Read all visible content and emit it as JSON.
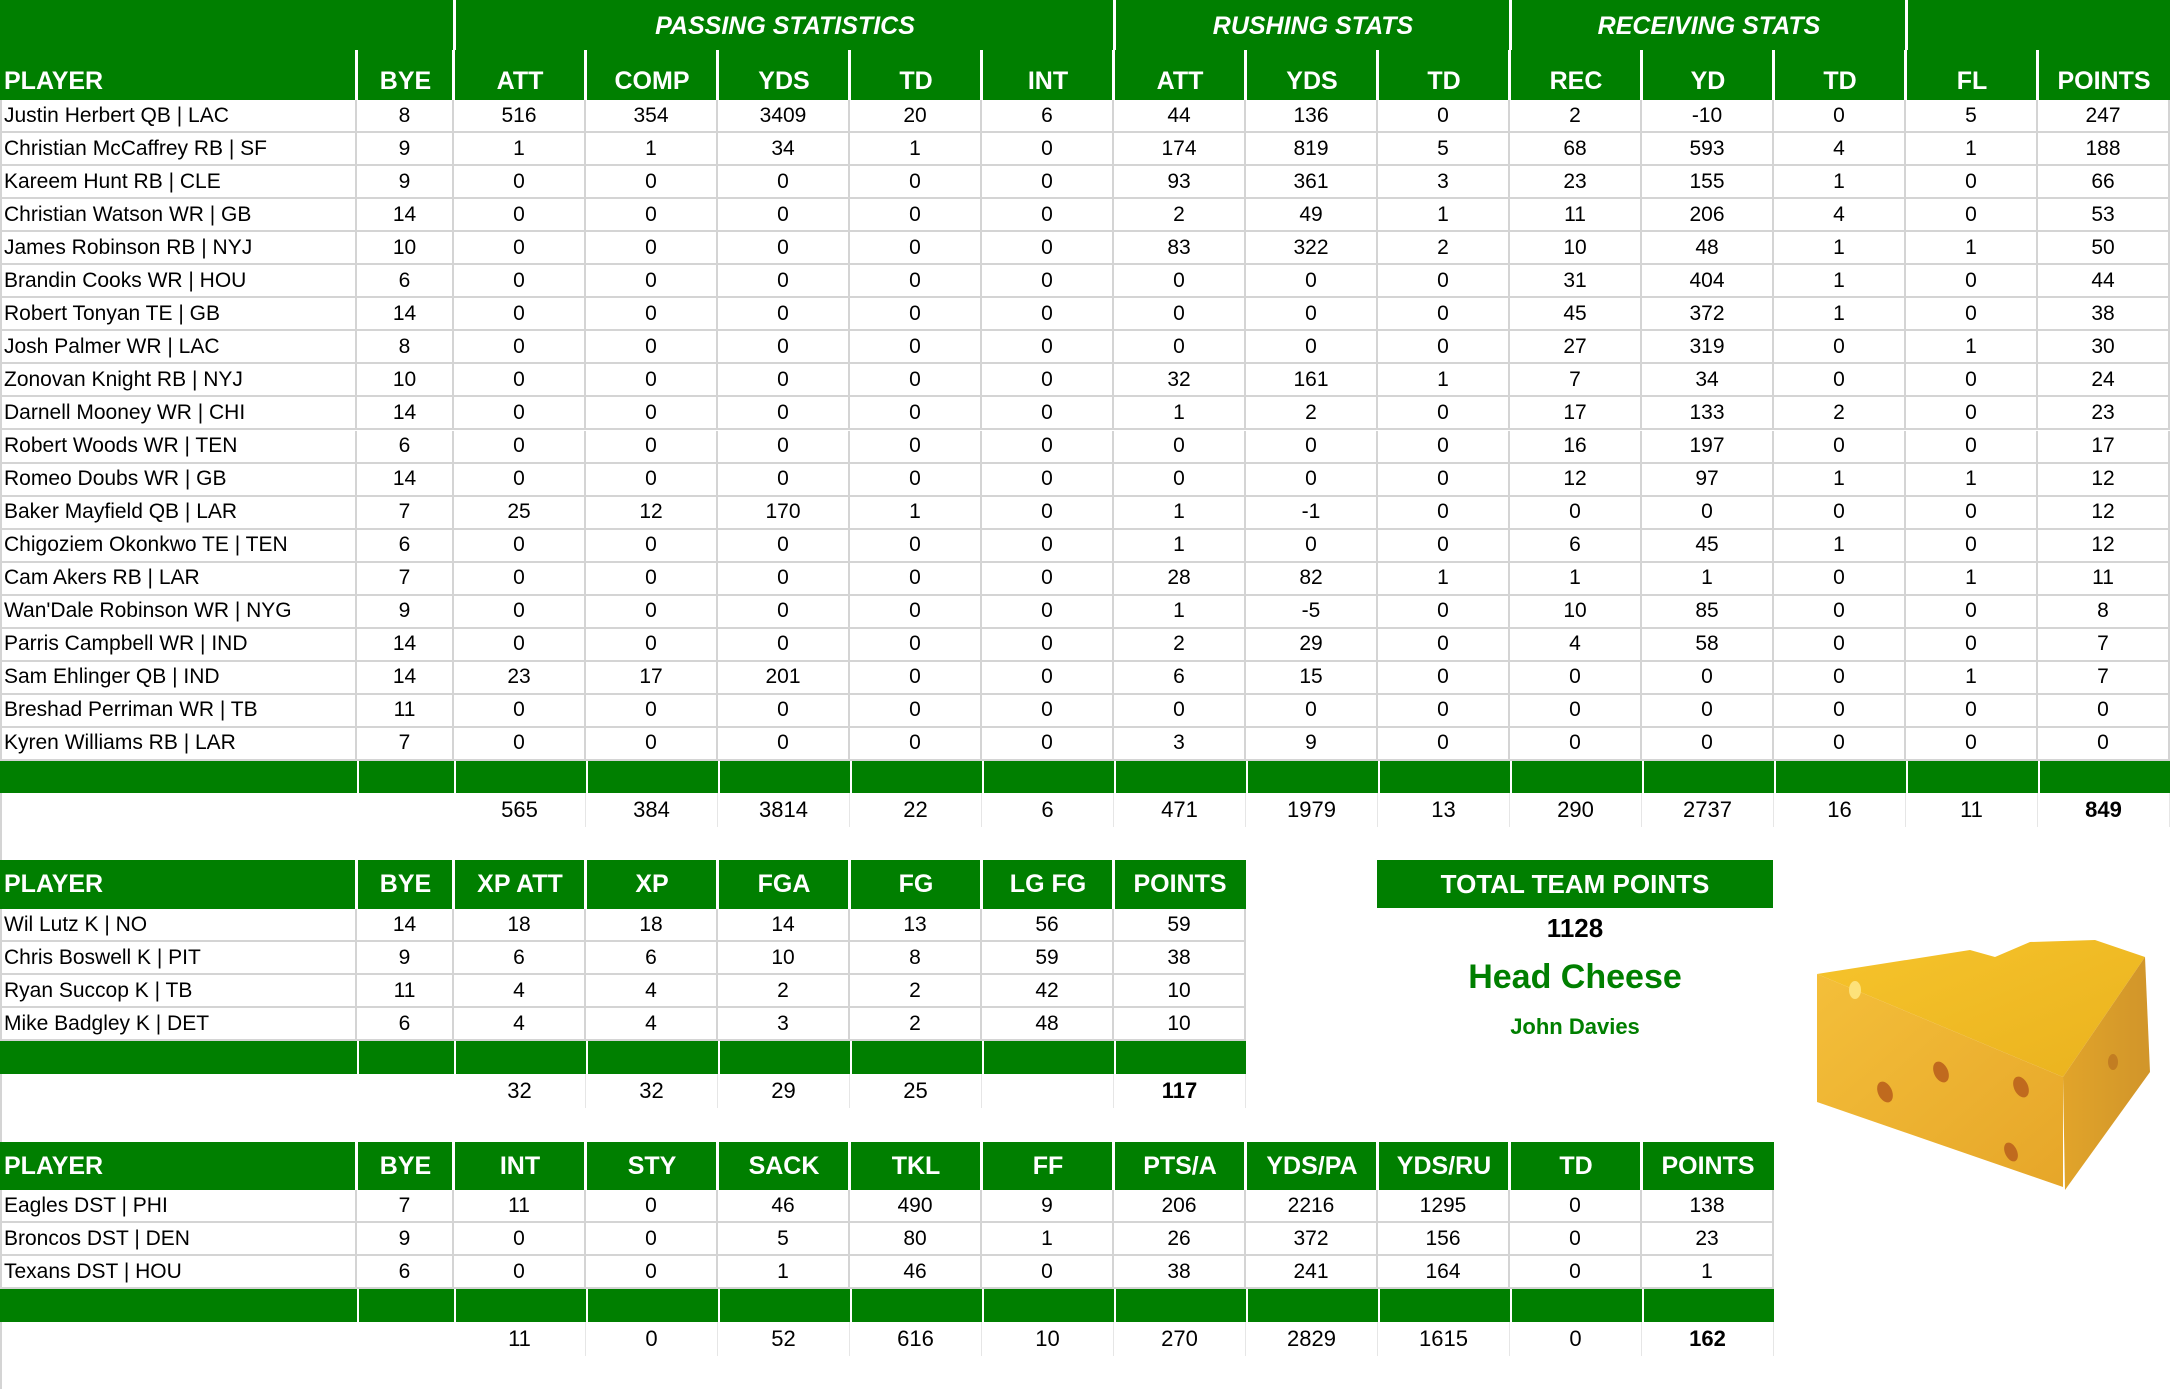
{
  "colors": {
    "header_green": "#007f00",
    "grid": "#d4d4d4",
    "accent_text": "#007f00"
  },
  "offense": {
    "groups": [
      {
        "label": ""
      },
      {
        "label": "PASSING STATISTICS"
      },
      {
        "label": "RUSHING STATS"
      },
      {
        "label": "RECEIVING STATS"
      },
      {
        "label": ""
      }
    ],
    "columns": [
      "PLAYER",
      "BYE",
      "ATT",
      "COMP",
      "YDS",
      "TD",
      "INT",
      "ATT",
      "YDS",
      "TD",
      "REC",
      "YD",
      "TD",
      "FL",
      "POINTS"
    ],
    "rows": [
      [
        "Justin Herbert QB | LAC",
        "8",
        "516",
        "354",
        "3409",
        "20",
        "6",
        "44",
        "136",
        "0",
        "2",
        "-10",
        "0",
        "5",
        "247"
      ],
      [
        "Christian McCaffrey RB | SF",
        "9",
        "1",
        "1",
        "34",
        "1",
        "0",
        "174",
        "819",
        "5",
        "68",
        "593",
        "4",
        "1",
        "188"
      ],
      [
        "Kareem Hunt RB | CLE",
        "9",
        "0",
        "0",
        "0",
        "0",
        "0",
        "93",
        "361",
        "3",
        "23",
        "155",
        "1",
        "0",
        "66"
      ],
      [
        "Christian Watson WR | GB",
        "14",
        "0",
        "0",
        "0",
        "0",
        "0",
        "2",
        "49",
        "1",
        "11",
        "206",
        "4",
        "0",
        "53"
      ],
      [
        "James Robinson RB | NYJ",
        "10",
        "0",
        "0",
        "0",
        "0",
        "0",
        "83",
        "322",
        "2",
        "10",
        "48",
        "1",
        "1",
        "50"
      ],
      [
        "Brandin Cooks WR | HOU",
        "6",
        "0",
        "0",
        "0",
        "0",
        "0",
        "0",
        "0",
        "0",
        "31",
        "404",
        "1",
        "0",
        "44"
      ],
      [
        "Robert Tonyan TE | GB",
        "14",
        "0",
        "0",
        "0",
        "0",
        "0",
        "0",
        "0",
        "0",
        "45",
        "372",
        "1",
        "0",
        "38"
      ],
      [
        "Josh Palmer WR | LAC",
        "8",
        "0",
        "0",
        "0",
        "0",
        "0",
        "0",
        "0",
        "0",
        "27",
        "319",
        "0",
        "1",
        "30"
      ],
      [
        "Zonovan Knight RB | NYJ",
        "10",
        "0",
        "0",
        "0",
        "0",
        "0",
        "32",
        "161",
        "1",
        "7",
        "34",
        "0",
        "0",
        "24"
      ],
      [
        "Darnell Mooney WR | CHI",
        "14",
        "0",
        "0",
        "0",
        "0",
        "0",
        "1",
        "2",
        "0",
        "17",
        "133",
        "2",
        "0",
        "23"
      ],
      [
        "Robert Woods WR | TEN",
        "6",
        "0",
        "0",
        "0",
        "0",
        "0",
        "0",
        "0",
        "0",
        "16",
        "197",
        "0",
        "0",
        "17"
      ],
      [
        "Romeo Doubs WR | GB",
        "14",
        "0",
        "0",
        "0",
        "0",
        "0",
        "0",
        "0",
        "0",
        "12",
        "97",
        "1",
        "1",
        "12"
      ],
      [
        "Baker Mayfield QB | LAR",
        "7",
        "25",
        "12",
        "170",
        "1",
        "0",
        "1",
        "-1",
        "0",
        "0",
        "0",
        "0",
        "0",
        "12"
      ],
      [
        "Chigoziem Okonkwo TE | TEN",
        "6",
        "0",
        "0",
        "0",
        "0",
        "0",
        "1",
        "0",
        "0",
        "6",
        "45",
        "1",
        "0",
        "12"
      ],
      [
        "Cam Akers RB | LAR",
        "7",
        "0",
        "0",
        "0",
        "0",
        "0",
        "28",
        "82",
        "1",
        "1",
        "1",
        "0",
        "1",
        "11"
      ],
      [
        "Wan'Dale Robinson WR | NYG",
        "9",
        "0",
        "0",
        "0",
        "0",
        "0",
        "1",
        "-5",
        "0",
        "10",
        "85",
        "0",
        "0",
        "8"
      ],
      [
        "Parris Campbell WR | IND",
        "14",
        "0",
        "0",
        "0",
        "0",
        "0",
        "2",
        "29",
        "0",
        "4",
        "58",
        "0",
        "0",
        "7"
      ],
      [
        "Sam Ehlinger QB | IND",
        "14",
        "23",
        "17",
        "201",
        "0",
        "0",
        "6",
        "15",
        "0",
        "0",
        "0",
        "0",
        "1",
        "7"
      ],
      [
        "Breshad Perriman WR | TB",
        "11",
        "0",
        "0",
        "0",
        "0",
        "0",
        "0",
        "0",
        "0",
        "0",
        "0",
        "0",
        "0",
        "0"
      ],
      [
        "Kyren Williams RB | LAR",
        "7",
        "0",
        "0",
        "0",
        "0",
        "0",
        "3",
        "9",
        "0",
        "0",
        "0",
        "0",
        "0",
        "0"
      ]
    ],
    "totals": [
      "",
      "",
      "565",
      "384",
      "3814",
      "22",
      "6",
      "471",
      "1979",
      "13",
      "290",
      "2737",
      "16",
      "11",
      "849"
    ]
  },
  "kickers": {
    "columns": [
      "PLAYER",
      "BYE",
      "XP ATT",
      "XP",
      "FGA",
      "FG",
      "LG FG",
      "POINTS"
    ],
    "rows": [
      [
        "Wil Lutz K | NO",
        "14",
        "18",
        "18",
        "14",
        "13",
        "56",
        "59"
      ],
      [
        "Chris Boswell K | PIT",
        "9",
        "6",
        "6",
        "10",
        "8",
        "59",
        "38"
      ],
      [
        "Ryan Succop K | TB",
        "11",
        "4",
        "4",
        "2",
        "2",
        "42",
        "10"
      ],
      [
        "Mike Badgley K | DET",
        "6",
        "4",
        "4",
        "3",
        "2",
        "48",
        "10"
      ]
    ],
    "totals": [
      "",
      "",
      "32",
      "32",
      "29",
      "25",
      "",
      "117"
    ]
  },
  "defense": {
    "columns": [
      "PLAYER",
      "BYE",
      "INT",
      "STY",
      "SACK",
      "TKL",
      "FF",
      "PTS/A",
      "YDS/PA",
      "YDS/RU",
      "TD",
      "POINTS"
    ],
    "rows": [
      [
        "Eagles DST | PHI",
        "7",
        "11",
        "0",
        "46",
        "490",
        "9",
        "206",
        "2216",
        "1295",
        "0",
        "138"
      ],
      [
        "Broncos DST | DEN",
        "9",
        "0",
        "0",
        "5",
        "80",
        "1",
        "26",
        "372",
        "156",
        "0",
        "23"
      ],
      [
        "Texans DST | HOU",
        "6",
        "0",
        "0",
        "1",
        "46",
        "0",
        "38",
        "241",
        "164",
        "0",
        "1"
      ]
    ],
    "totals": [
      "",
      "",
      "11",
      "0",
      "52",
      "616",
      "10",
      "270",
      "2829",
      "1615",
      "0",
      "162"
    ]
  },
  "team_summary": {
    "title": "TOTAL TEAM POINTS",
    "total_points": "1128",
    "team_name": "Head Cheese",
    "owner": "John Davies",
    "logo_icon": "cheese-wedge-icon"
  }
}
